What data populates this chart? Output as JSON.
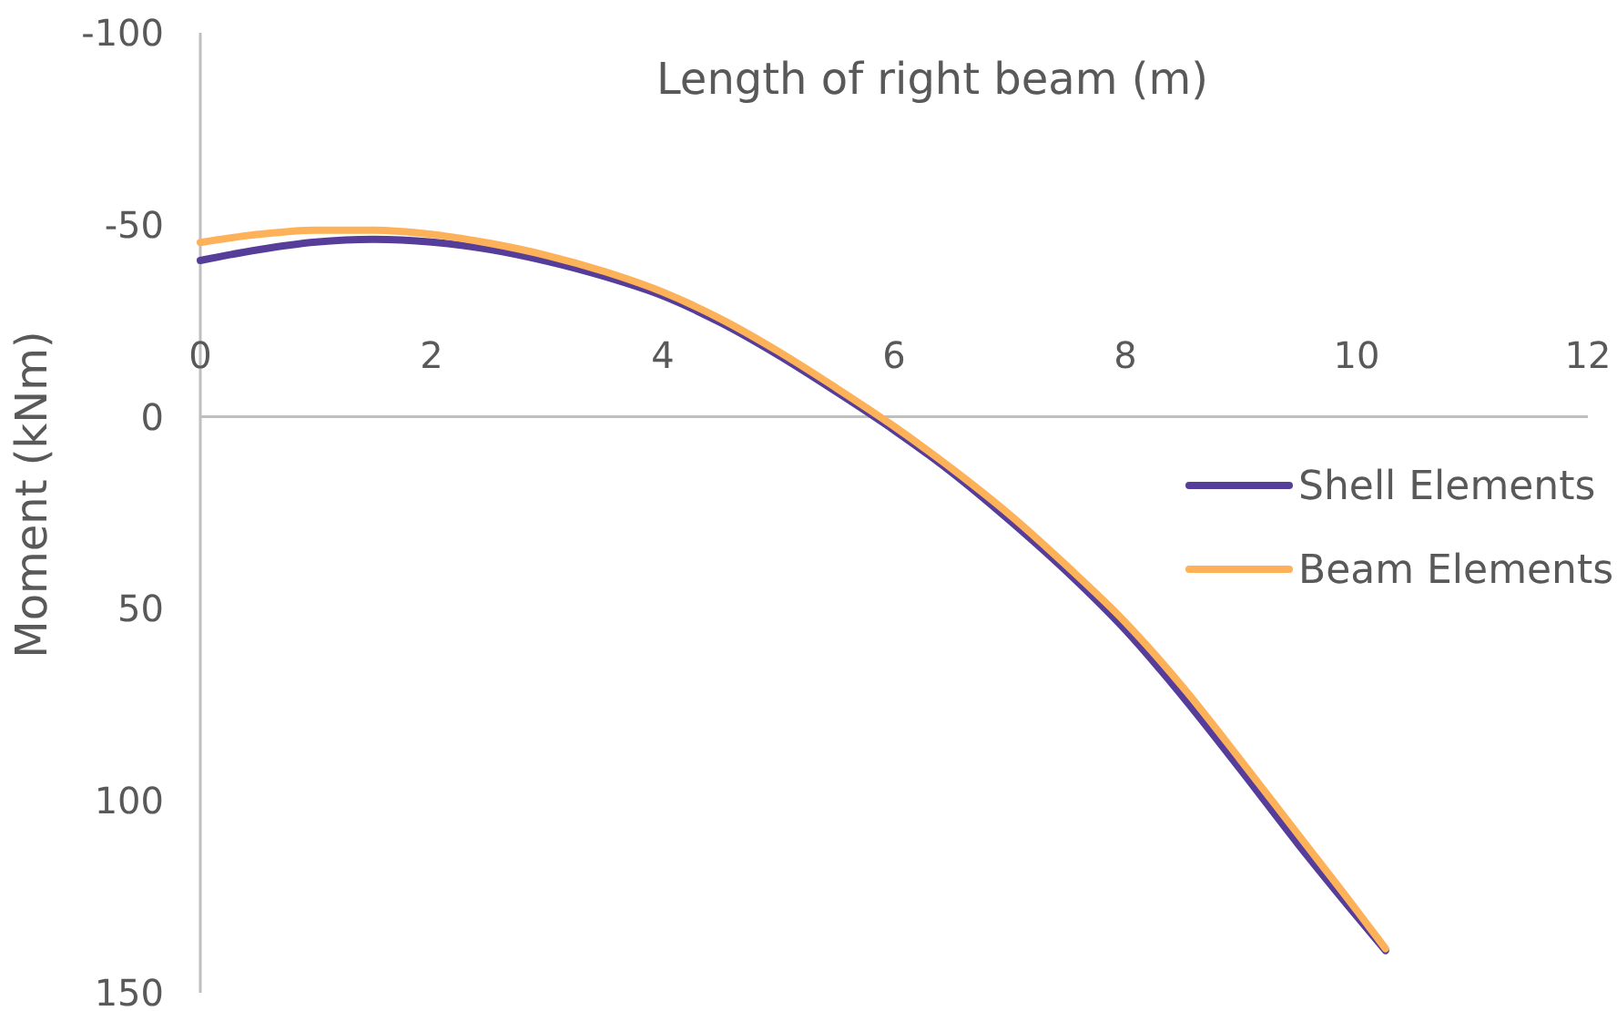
{
  "chart_data": {
    "type": "line",
    "xlabel": "Length of right beam (m)",
    "ylabel": "Moment (kNm)",
    "xlim": [
      0,
      12
    ],
    "xticks": [
      0,
      2,
      4,
      6,
      8,
      10,
      12
    ],
    "ylim": [
      150,
      -100
    ],
    "yticks": [
      -100,
      -50,
      0,
      50,
      100,
      150
    ],
    "grid": false,
    "legend": "right",
    "marker": "none",
    "line_style": "solid",
    "x": [
      0,
      0.5,
      1,
      1.5,
      2,
      2.5,
      3,
      3.5,
      4,
      4.5,
      5,
      5.5,
      6,
      6.5,
      7,
      7.5,
      8,
      8.5,
      9,
      9.5,
      10,
      10.25
    ],
    "series": [
      {
        "name": "Shell Elements",
        "color": "#563d99",
        "values": [
          -40.7,
          -43.5,
          -45.5,
          -46.2,
          -45.5,
          -43.6,
          -40.5,
          -36.5,
          -31.5,
          -24.5,
          -16,
          -6.5,
          3.5,
          14.5,
          27,
          40.5,
          55.5,
          73,
          92,
          111.5,
          130,
          139
        ]
      },
      {
        "name": "Beam Elements",
        "color": "#fdb25a",
        "values": [
          -45.4,
          -47.5,
          -48.6,
          -48.6,
          -47.5,
          -45.2,
          -42,
          -37.8,
          -32.5,
          -25.5,
          -17,
          -7.5,
          2.5,
          13.5,
          25.5,
          39,
          53.5,
          70.5,
          89.5,
          109,
          128.5,
          138.5
        ]
      }
    ]
  }
}
